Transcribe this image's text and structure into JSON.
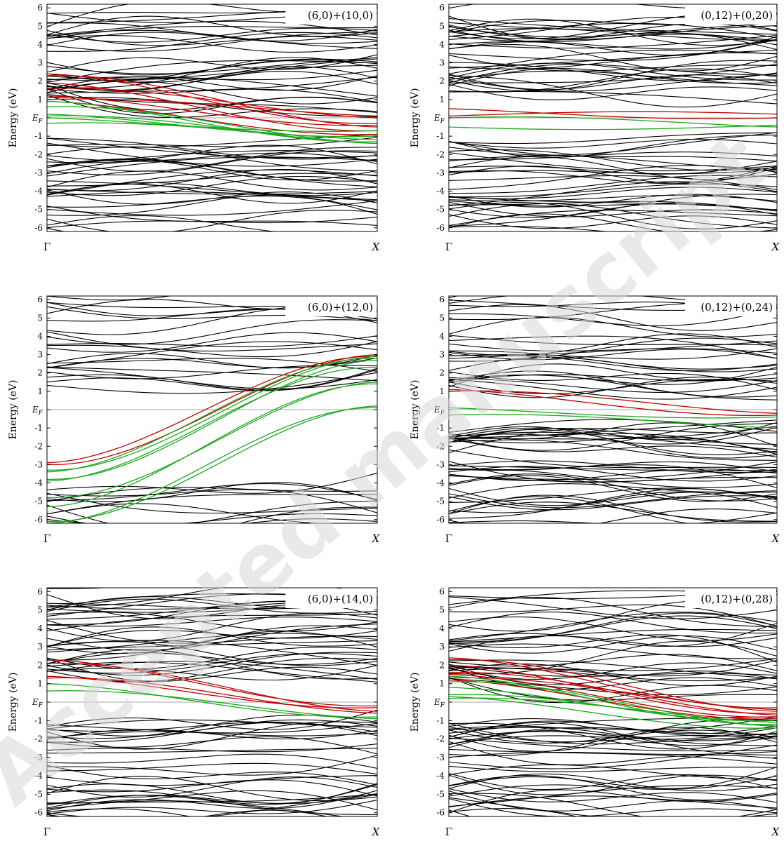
{
  "colors": {
    "background": "#ffffff",
    "bands": "#000000",
    "red_bands": "#c00000",
    "green_bands": "#1aa81a",
    "fermi_line": "#888888",
    "watermark": "#d8d8d8"
  },
  "watermark": "Accepted manuscript",
  "chart_data": [
    {
      "type": "line",
      "label": "(6,0)+(10,0)",
      "ylabel": "Energy (eV)",
      "yticks": [
        "6",
        "5",
        "4",
        "3",
        "2",
        "1",
        "E_F",
        "-1",
        "-2",
        "-3",
        "-4",
        "-5",
        "-6"
      ],
      "xticks": [
        "Γ",
        "X"
      ],
      "ylim": [
        -6.2,
        6.2
      ],
      "series": [
        {
          "color": "red",
          "start_end": [
            [
              2.4,
              -0.3
            ],
            [
              2.3,
              -0.5
            ],
            [
              1.9,
              -0.7
            ],
            [
              1.6,
              0.0
            ],
            [
              1.2,
              -0.4
            ],
            [
              1.0,
              0.1
            ],
            [
              0.9,
              -0.9
            ]
          ]
        },
        {
          "color": "green",
          "start_end": [
            [
              0.9,
              -1.3
            ],
            [
              0.6,
              -1.4
            ],
            [
              0.2,
              -1.0
            ],
            [
              0.1,
              -1.4
            ],
            [
              0.0,
              -0.7
            ],
            [
              -0.3,
              -1.2
            ]
          ]
        }
      ]
    },
    {
      "type": "line",
      "label": "(0,12)+(0,20)",
      "ylabel": "Energy (eV)",
      "yticks": [
        "6",
        "5",
        "4",
        "3",
        "2",
        "1",
        "E_F",
        "-1",
        "-2",
        "-3",
        "-4",
        "-5",
        "-6"
      ],
      "xticks": [
        "Γ",
        "X"
      ],
      "ylim": [
        -6.2,
        6.2
      ],
      "series": [
        {
          "color": "red",
          "start_end": [
            [
              0.5,
              0.0
            ],
            [
              0.1,
              0.2
            ]
          ]
        },
        {
          "color": "green",
          "start_end": [
            [
              -0.5,
              -0.4
            ],
            [
              0.0,
              -0.5
            ]
          ]
        }
      ]
    },
    {
      "type": "line",
      "label": "(6,0)+(12,0)",
      "ylabel": "Energy (eV)",
      "yticks": [
        "6",
        "5",
        "4",
        "3",
        "2",
        "1",
        "E_F",
        "-1",
        "-2",
        "-3",
        "-4",
        "-5",
        "-6"
      ],
      "xticks": [
        "Γ",
        "X"
      ],
      "ylim": [
        -6.2,
        6.2
      ],
      "series": [
        {
          "color": "red",
          "start_end": [
            [
              -3.0,
              3.0
            ],
            [
              -2.9,
              2.9
            ]
          ]
        },
        {
          "color": "green",
          "start_end": [
            [
              -3.3,
              2.9
            ],
            [
              -3.4,
              2.8
            ],
            [
              -3.8,
              2.7
            ],
            [
              -3.9,
              2.3
            ],
            [
              -4.8,
              1.5
            ],
            [
              -5.3,
              1.4
            ],
            [
              -6.1,
              0.2
            ],
            [
              -6.2,
              0.1
            ]
          ]
        }
      ]
    },
    {
      "type": "line",
      "label": "(0,12)+(0,24)",
      "ylabel": "Energy (eV)",
      "yticks": [
        "6",
        "5",
        "4",
        "3",
        "2",
        "1",
        "E_F",
        "-1",
        "-2",
        "-3",
        "-4",
        "-5",
        "-6"
      ],
      "xticks": [
        "Γ",
        "X"
      ],
      "ylim": [
        -6.2,
        6.2
      ],
      "series": [
        {
          "color": "red",
          "start_end": [
            [
              1.1,
              -0.3
            ],
            [
              1.0,
              -0.2
            ]
          ]
        },
        {
          "color": "green",
          "start_end": [
            [
              0.1,
              -0.4
            ],
            [
              -0.3,
              -1.0
            ]
          ]
        }
      ]
    },
    {
      "type": "line",
      "label": "(6,0)+(14,0)",
      "ylabel": "Energy (eV)",
      "yticks": [
        "6",
        "5",
        "4",
        "3",
        "2",
        "1",
        "E_F",
        "-1",
        "-2",
        "-3",
        "-4",
        "-5",
        "-6"
      ],
      "xticks": [
        "Γ",
        "X"
      ],
      "ylim": [
        -6.2,
        6.2
      ],
      "series": [
        {
          "color": "red",
          "start_end": [
            [
              2.3,
              -0.2
            ],
            [
              2.1,
              -0.5
            ],
            [
              1.4,
              -0.3
            ],
            [
              1.3,
              -0.6
            ]
          ]
        },
        {
          "color": "green",
          "start_end": [
            [
              1.0,
              -0.8
            ],
            [
              0.6,
              -0.9
            ]
          ]
        }
      ]
    },
    {
      "type": "line",
      "label": "(0,12)+(0,28)",
      "ylabel": "Energy (eV)",
      "yticks": [
        "6",
        "5",
        "4",
        "3",
        "2",
        "1",
        "E_F",
        "-1",
        "-2",
        "-3",
        "-4",
        "-5",
        "-6"
      ],
      "xticks": [
        "Γ",
        "X"
      ],
      "ylim": [
        -6.2,
        6.2
      ],
      "series": [
        {
          "color": "red",
          "start_end": [
            [
              2.4,
              -0.3
            ],
            [
              2.3,
              -0.5
            ],
            [
              2.0,
              -0.6
            ],
            [
              1.6,
              -0.7
            ],
            [
              1.5,
              -0.8
            ],
            [
              1.3,
              -0.4
            ],
            [
              1.2,
              -0.9
            ]
          ]
        },
        {
          "color": "green",
          "start_end": [
            [
              1.4,
              -1.2
            ],
            [
              1.1,
              -1.3
            ],
            [
              0.8,
              -1.0
            ],
            [
              0.4,
              -1.3
            ],
            [
              0.3,
              -1.4
            ],
            [
              0.2,
              -1.1
            ]
          ]
        }
      ]
    }
  ]
}
